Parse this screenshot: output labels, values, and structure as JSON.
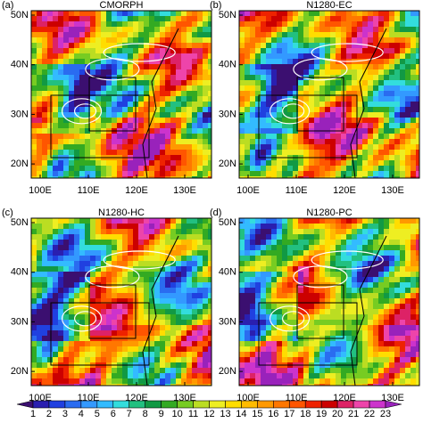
{
  "panels": [
    {
      "label": "(a)",
      "title": "CMORPH"
    },
    {
      "label": "(b)",
      "title": "N1280-EC"
    },
    {
      "label": "(c)",
      "title": "N1280-HC"
    },
    {
      "label": "(d)",
      "title": "N1280-PC"
    }
  ],
  "lat_labels": [
    "50N",
    "40N",
    "30N",
    "20N"
  ],
  "lon_labels": [
    "100E",
    "110E",
    "120E",
    "130E"
  ],
  "colorbar": {
    "ticks": [
      1,
      2,
      3,
      4,
      5,
      6,
      7,
      8,
      9,
      10,
      11,
      12,
      13,
      14,
      15,
      16,
      17,
      18,
      19,
      20,
      21,
      22,
      23
    ],
    "colors": [
      "#3b0f70",
      "#2a1fb0",
      "#2040e0",
      "#2a6cf0",
      "#3399ff",
      "#33bbff",
      "#33dddd",
      "#22c080",
      "#119944",
      "#33aa22",
      "#77cc22",
      "#bbdd22",
      "#eeee22",
      "#ffdd00",
      "#ffbb00",
      "#ff9900",
      "#ff7700",
      "#ff5500",
      "#ee2200",
      "#cc0000",
      "#dd2266",
      "#ee44aa",
      "#cc33cc",
      "#9922bb"
    ]
  }
}
